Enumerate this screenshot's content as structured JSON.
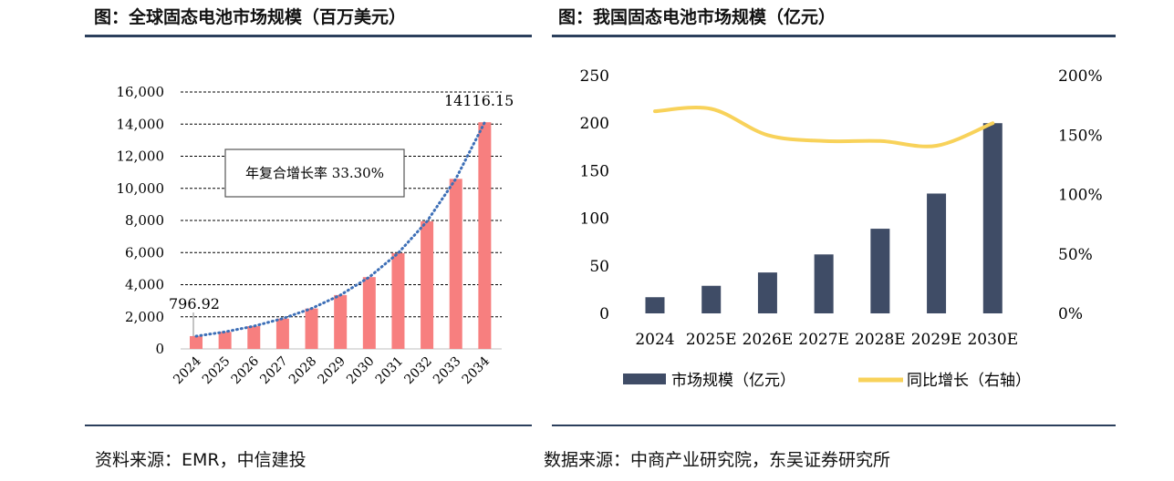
{
  "left": {
    "title": "图：全球固态电池市场规模（百万美元）",
    "source": "资料来源：EMR，中信建投",
    "cagr_label": "年复合增长率 33.30%",
    "colors": {
      "bar": "#f77f7f",
      "trend": "#3d6fb7",
      "grid": "#000000"
    }
  },
  "right": {
    "title": "图：我国固态电池市场规模（亿元）",
    "source": "数据来源：中商产业研究院，东吴证券研究所",
    "colors": {
      "bar": "#3f4c66",
      "line": "#f8d25a"
    }
  },
  "chart_data": [
    {
      "type": "bar",
      "title": "图：全球固态电池市场规模（百万美元）",
      "categories": [
        "2024",
        "2025",
        "2026",
        "2027",
        "2028",
        "2029",
        "2030",
        "2031",
        "2032",
        "2033",
        "2034"
      ],
      "values": [
        796.92,
        1062,
        1416,
        1888,
        2517,
        3355,
        4472,
        5961,
        7946,
        10592,
        14116.15
      ],
      "data_labels": [
        "796.92",
        "",
        "",
        "",
        "",
        "",
        "",
        "",
        "",
        "",
        "14116.15"
      ],
      "ylim": [
        0,
        16000
      ],
      "yticks": [
        0,
        2000,
        4000,
        6000,
        8000,
        10000,
        12000,
        14000,
        16000
      ],
      "ytick_labels": [
        "0",
        "2,000",
        "4,000",
        "6,000",
        "8,000",
        "10,000",
        "12,000",
        "14,000",
        "16,000"
      ],
      "trendline": "exponential, dotted",
      "grid": true
    },
    {
      "type": "bar",
      "title": "图：我国固态电池市场规模（亿元）",
      "categories": [
        "2024",
        "2025E",
        "2026E",
        "2027E",
        "2028E",
        "2029E",
        "2030E"
      ],
      "series": [
        {
          "name": "市场规模（亿元）",
          "type": "bar",
          "axis": "left",
          "values": [
            17,
            29,
            43,
            62,
            89,
            126,
            200
          ]
        },
        {
          "name": "同比增长（右轴）",
          "type": "line",
          "axis": "right",
          "values": [
            1.7,
            1.72,
            1.5,
            1.45,
            1.45,
            1.41,
            1.6
          ]
        }
      ],
      "ylim": [
        0,
        250
      ],
      "yticks": [
        0,
        50,
        100,
        150,
        200,
        250
      ],
      "ytick_labels": [
        "0",
        "50",
        "100",
        "150",
        "200",
        "250"
      ],
      "y2lim": [
        0,
        2.0
      ],
      "y2ticks": [
        0,
        0.5,
        1.0,
        1.5,
        2.0
      ],
      "y2tick_labels": [
        "0%",
        "50%",
        "100%",
        "150%",
        "200%"
      ],
      "legend": "bottom",
      "grid": false
    }
  ]
}
